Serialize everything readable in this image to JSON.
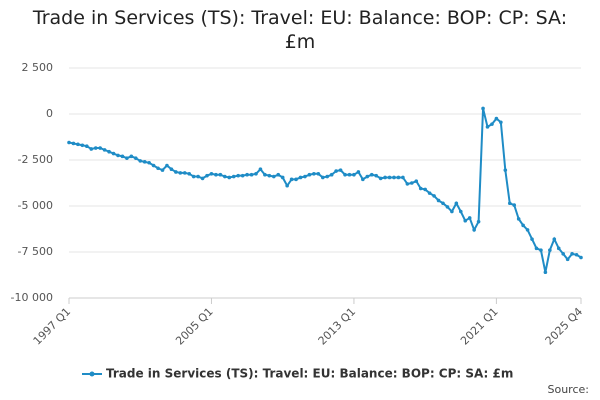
{
  "chart_data": {
    "type": "line",
    "title": "Trade in Services (TS): Travel: EU: Balance: BOP: CP: SA: £m",
    "source": "Source:",
    "categories": [
      "1997 Q1",
      null,
      null,
      null,
      null,
      null,
      null,
      null,
      null,
      null,
      null,
      null,
      null,
      null,
      null,
      null,
      null,
      null,
      null,
      null,
      null,
      null,
      null,
      null,
      null,
      null,
      null,
      null,
      null,
      null,
      null,
      null,
      "2005 Q1",
      null,
      null,
      null,
      null,
      null,
      null,
      null,
      null,
      null,
      null,
      null,
      null,
      null,
      null,
      null,
      null,
      null,
      null,
      null,
      null,
      null,
      null,
      null,
      null,
      null,
      null,
      null,
      null,
      null,
      null,
      null,
      "2013 Q1",
      null,
      null,
      null,
      null,
      null,
      null,
      null,
      null,
      null,
      null,
      null,
      null,
      null,
      null,
      null,
      null,
      null,
      null,
      null,
      null,
      null,
      null,
      null,
      null,
      null,
      null,
      null,
      null,
      null,
      null,
      null,
      "2021 Q1",
      null,
      null,
      null,
      null,
      null,
      null,
      null,
      null,
      null,
      null,
      null,
      null,
      null,
      null,
      null,
      null,
      null,
      null,
      "2025 Q4"
    ],
    "series": [
      {
        "name": "Trade in Services (TS): Travel: EU: Balance: BOP: CP: SA: £m",
        "color": "#1f8cc6",
        "values": [
          -1550,
          -1600,
          -1650,
          -1700,
          -1750,
          -1900,
          -1850,
          -1850,
          -1950,
          -2050,
          -2150,
          -2250,
          -2300,
          -2400,
          -2300,
          -2400,
          -2550,
          -2600,
          -2650,
          -2800,
          -2950,
          -3050,
          -2800,
          -3000,
          -3150,
          -3200,
          -3200,
          -3250,
          -3400,
          -3400,
          -3500,
          -3350,
          -3250,
          -3300,
          -3300,
          -3400,
          -3450,
          -3400,
          -3350,
          -3350,
          -3300,
          -3300,
          -3250,
          -3000,
          -3300,
          -3350,
          -3400,
          -3300,
          -3450,
          -3900,
          -3550,
          -3550,
          -3450,
          -3400,
          -3300,
          -3250,
          -3250,
          -3450,
          -3400,
          -3300,
          -3100,
          -3050,
          -3300,
          -3300,
          -3300,
          -3150,
          -3550,
          -3400,
          -3300,
          -3350,
          -3500,
          -3450,
          -3450,
          -3450,
          -3450,
          -3450,
          -3800,
          -3750,
          -3650,
          -4050,
          -4100,
          -4300,
          -4450,
          -4700,
          -4850,
          -5050,
          -5300,
          -4850,
          -5300,
          -5800,
          -5650,
          -6300,
          -5850,
          300,
          -700,
          -550,
          -250,
          -450,
          -3050,
          -4850,
          -4950,
          -5700,
          -6050,
          -6300,
          -6800,
          -7300,
          -7400,
          -8600,
          -7400,
          -6800,
          -7300,
          -7600,
          -7900,
          -7600,
          -7650,
          -7800
        ]
      }
    ],
    "ylim": [
      -10000,
      3000
    ],
    "yticks": [
      {
        "value": -10000,
        "label": "-10 000"
      },
      {
        "value": -7500,
        "label": "-7 500"
      },
      {
        "value": -5000,
        "label": "-5 000"
      },
      {
        "value": -2500,
        "label": "-2 500"
      },
      0,
      {
        "value": 2500,
        "label": "2 500"
      }
    ],
    "grid": true
  }
}
